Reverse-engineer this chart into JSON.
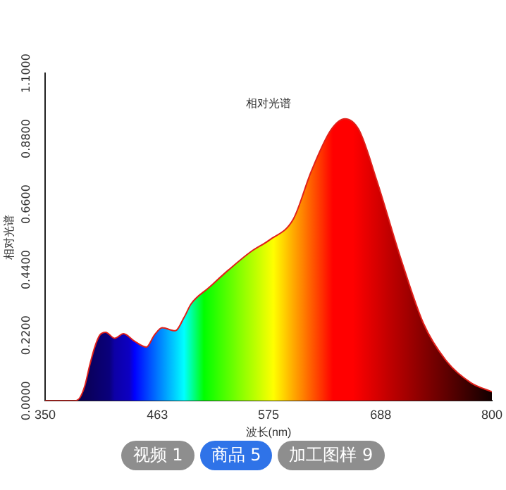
{
  "chart_data": {
    "type": "area",
    "title": "相对光谱",
    "xlabel": "波长(nm)",
    "ylabel": "相对光谱",
    "xlim": [
      350,
      800
    ],
    "xticks": [
      350,
      463,
      575,
      688,
      800
    ],
    "ylim": [
      0,
      1.1
    ],
    "yticks": [
      {
        "value": 0,
        "label": "0.0000"
      },
      {
        "value": 0.22,
        "label": "0.2200"
      },
      {
        "value": 0.44,
        "label": "0.4400"
      },
      {
        "value": 0.66,
        "label": "0.6600"
      },
      {
        "value": 0.88,
        "label": "0.8800"
      },
      {
        "value": 1.1,
        "label": "1.1000"
      }
    ],
    "grid": false,
    "legend": false,
    "series": [
      {
        "color": "#e0201a",
        "x": [
          350,
          380,
          385,
          390,
          395,
          400,
          405,
          411,
          420,
          429,
          440,
          452,
          460,
          468,
          481,
          490,
          497,
          515,
          535,
          557,
          576,
          600,
          618,
          638,
          652,
          666,
          684,
          708,
          731,
          755,
          779,
          800
        ],
        "values": [
          0,
          0,
          0.01,
          0.05,
          0.12,
          0.18,
          0.22,
          0.23,
          0.21,
          0.225,
          0.2,
          0.18,
          0.22,
          0.245,
          0.235,
          0.28,
          0.325,
          0.38,
          0.44,
          0.5,
          0.54,
          0.61,
          0.77,
          0.91,
          0.947,
          0.91,
          0.74,
          0.48,
          0.26,
          0.13,
          0.06,
          0.03
        ]
      }
    ],
    "annotations": [
      "视频 1",
      "商品 5",
      "加工图样 9"
    ]
  }
}
